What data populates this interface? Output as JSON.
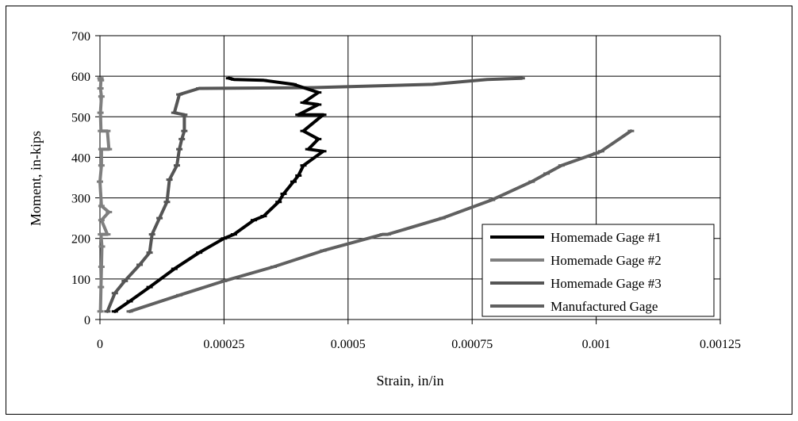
{
  "chart_data": {
    "type": "line",
    "title": "",
    "xlabel": "Strain, in/in",
    "ylabel": "Moment, in-kips",
    "xlim": [
      0,
      0.00125
    ],
    "ylim": [
      0,
      700
    ],
    "x_ticks": [
      "0",
      "0.00025",
      "0.0005",
      "0.00075",
      "0.001",
      "0.00125"
    ],
    "y_ticks": [
      "0",
      "100",
      "200",
      "300",
      "400",
      "500",
      "600",
      "700"
    ],
    "grid": true,
    "legend_position": "bottom-right",
    "series": [
      {
        "name": "Homemade Gage #1",
        "color": "#000000",
        "points": [
          [
            3e-05,
            20
          ],
          [
            6e-05,
            45
          ],
          [
            0.0001,
            80
          ],
          [
            0.00015,
            125
          ],
          [
            0.0002,
            165
          ],
          [
            0.00025,
            200
          ],
          [
            0.00027,
            210
          ],
          [
            0.00031,
            245
          ],
          [
            0.00033,
            255
          ],
          [
            0.00036,
            290
          ],
          [
            0.00037,
            310
          ],
          [
            0.00039,
            340
          ],
          [
            0.0004,
            355
          ],
          [
            0.00041,
            380
          ],
          [
            0.00045,
            415
          ],
          [
            0.00042,
            420
          ],
          [
            0.00044,
            445
          ],
          [
            0.00041,
            465
          ],
          [
            0.00045,
            505
          ],
          [
            0.0004,
            505
          ],
          [
            0.00044,
            530
          ],
          [
            0.00041,
            535
          ],
          [
            0.00044,
            560
          ],
          [
            0.00039,
            580
          ],
          [
            0.00033,
            590
          ],
          [
            0.00027,
            592
          ],
          [
            0.00026,
            595
          ]
        ]
      },
      {
        "name": "Homemade Gage #2",
        "color": "#7f7f7f",
        "points": [
          [
            1e-06,
            20
          ],
          [
            2e-06,
            80
          ],
          [
            3e-06,
            130
          ],
          [
            4e-06,
            180
          ],
          [
            2e-06,
            210
          ],
          [
            1.5e-05,
            210
          ],
          [
            3e-06,
            245
          ],
          [
            1.8e-05,
            265
          ],
          [
            3e-06,
            280
          ],
          [
            0.0,
            340
          ],
          [
            3e-06,
            380
          ],
          [
            3e-06,
            420
          ],
          [
            1.8e-05,
            420
          ],
          [
            1.5e-05,
            465
          ],
          [
            2e-06,
            465
          ],
          [
            1e-06,
            510
          ],
          [
            3e-06,
            550
          ],
          [
            1e-06,
            570
          ],
          [
            2e-06,
            590
          ],
          [
            1e-06,
            595
          ]
        ]
      },
      {
        "name": "Homemade Gage #3",
        "color": "#555555",
        "points": [
          [
            1.5e-05,
            20
          ],
          [
            3e-05,
            65
          ],
          [
            5e-05,
            95
          ],
          [
            8e-05,
            135
          ],
          [
            0.0001,
            165
          ],
          [
            0.000105,
            210
          ],
          [
            0.00012,
            250
          ],
          [
            0.000135,
            290
          ],
          [
            0.00014,
            345
          ],
          [
            0.000155,
            380
          ],
          [
            0.00016,
            420
          ],
          [
            0.000165,
            445
          ],
          [
            0.00017,
            465
          ],
          [
            0.00017,
            505
          ],
          [
            0.00015,
            510
          ],
          [
            0.00016,
            555
          ],
          [
            0.0002,
            570
          ],
          [
            0.00043,
            572
          ],
          [
            0.00067,
            580
          ],
          [
            0.00078,
            592
          ],
          [
            0.00085,
            595
          ]
        ]
      },
      {
        "name": "Manufactured Gage",
        "color": "#606060",
        "points": [
          [
            6e-05,
            20
          ],
          [
            0.00016,
            60
          ],
          [
            0.00025,
            95
          ],
          [
            0.00035,
            130
          ],
          [
            0.00045,
            170
          ],
          [
            0.00057,
            210
          ],
          [
            0.00058,
            210
          ],
          [
            0.00069,
            250
          ],
          [
            0.00079,
            295
          ],
          [
            0.00087,
            340
          ],
          [
            0.0009,
            360
          ],
          [
            0.00093,
            380
          ],
          [
            0.001,
            410
          ],
          [
            0.00101,
            415
          ],
          [
            0.00107,
            465
          ]
        ]
      }
    ]
  }
}
